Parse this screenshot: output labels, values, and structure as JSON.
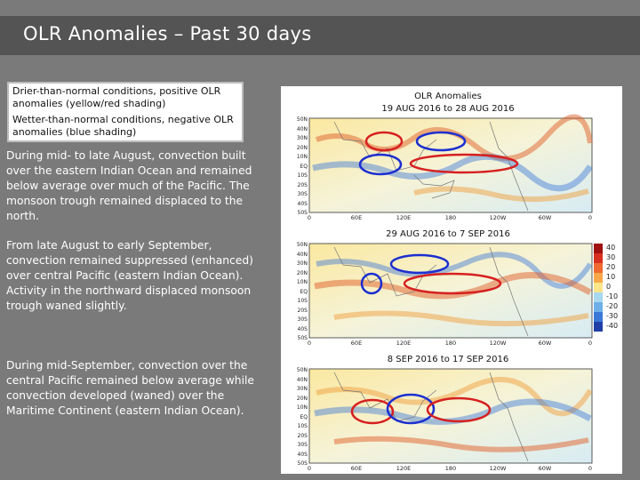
{
  "title": "OLR Anomalies – Past 30 days",
  "legend": {
    "dry": "Drier-than-normal conditions, positive OLR anomalies (yellow/red shading)",
    "wet": "Wetter-than-normal conditions, negative OLR anomalies (blue shading)"
  },
  "paragraphs": [
    "During mid- to late August, convection built over the eastern Indian Ocean and remained below average over much of the Pacific. The monsoon trough remained displaced to the north.",
    "From late August to early September, convection remained suppressed (enhanced) over central Pacific (eastern Indian Ocean). Activity in the northward displaced monsoon trough waned slightly.",
    "During mid-September, convection over the central Pacific remained below average while convection developed (waned) over the Maritime Continent (eastern Indian Ocean)."
  ],
  "figure": {
    "heading": "OLR Anomalies",
    "panels": [
      {
        "date": "19 AUG 2016 to 28 AUG 2016"
      },
      {
        "date": "29 AUG 2016 to 7 SEP 2016"
      },
      {
        "date": "8 SEP 2016 to 17 SEP 2016"
      }
    ],
    "lat_labels": [
      "50N",
      "40N",
      "30N",
      "20N",
      "10N",
      "EQ",
      "10S",
      "20S",
      "30S",
      "40S",
      "50S"
    ],
    "lon_labels": [
      "0",
      "60E",
      "120E",
      "180",
      "120W",
      "60W",
      "0"
    ],
    "colorbar": [
      "40",
      "30",
      "20",
      "10",
      "0",
      "-10",
      "-20",
      "-30",
      "-40"
    ],
    "colorbar_colors": [
      "#a01010",
      "#d83020",
      "#f06a30",
      "#f8a848",
      "#fde58a",
      "#a8d8f0",
      "#70b0e8",
      "#3c78d8",
      "#2040a8"
    ]
  }
}
